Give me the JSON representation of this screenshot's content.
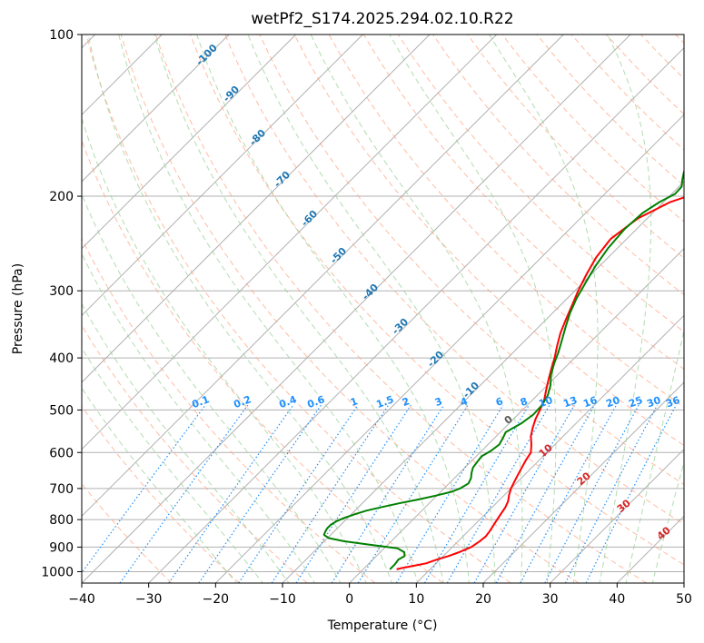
{
  "chart_data": {
    "type": "line",
    "title": "wetPf2_S174.2025.294.02.10.R22",
    "xlabel": "Temperature (°C)",
    "ylabel": "Pressure (hPa)",
    "xlim": [
      -40,
      50
    ],
    "ylim": [
      1050,
      100
    ],
    "x_ticks": [
      -40,
      -30,
      -20,
      -10,
      0,
      10,
      20,
      30,
      40,
      50
    ],
    "x_tick_labels": [
      "−40",
      "−30",
      "−20",
      "−10",
      "0",
      "10",
      "20",
      "30",
      "40",
      "50"
    ],
    "y_ticks": [
      1000,
      900,
      800,
      700,
      600,
      500,
      400,
      300,
      200,
      100
    ],
    "y_tick_labels": [
      "1000",
      "900",
      "800",
      "700",
      "600",
      "500",
      "400",
      "300",
      "200",
      "100"
    ],
    "grid": true,
    "dry_adiabat_labels": [
      "-100",
      "-90",
      "-80",
      "-70",
      "-60",
      "-50",
      "-40",
      "-30",
      "-20",
      "-10"
    ],
    "mixing_ratio_labels": [
      "0.1",
      "0.2",
      "0.4",
      "0.6",
      "1",
      "1.5",
      "2",
      "3",
      "4",
      "6",
      "8",
      "10",
      "13",
      "16",
      "20",
      "25",
      "30",
      "36"
    ],
    "moist_adiabat_labels": [
      "0",
      "10",
      "20",
      "30",
      "40"
    ],
    "colors": {
      "temperature": "#ff0000",
      "dewpoint": "#008000",
      "isotherm": "#b0b0b0",
      "dry_adiabat": "#ffa07a",
      "moist_adiabat": "#98d098",
      "mixing_ratio": "#1e90ff"
    },
    "series": [
      {
        "name": "Temperature",
        "pressure": [
          990,
          985,
          975,
          965,
          950,
          935,
          920,
          900,
          880,
          860,
          840,
          820,
          800,
          780,
          760,
          740,
          720,
          700,
          680,
          660,
          640,
          620,
          600,
          580,
          560,
          540,
          520,
          500,
          480,
          460,
          440,
          420,
          400,
          380,
          360,
          340,
          320,
          300,
          280,
          260,
          240,
          220,
          205,
          198,
          190,
          182,
          175,
          168,
          160,
          152,
          145,
          138,
          132,
          126,
          120,
          115,
          110,
          105,
          100
        ],
        "values": [
          5.0,
          5.5,
          7.0,
          8.5,
          9.5,
          10.8,
          11.8,
          12.8,
          13.2,
          13.4,
          13.2,
          12.9,
          12.6,
          12.3,
          12.0,
          11.5,
          10.7,
          10.0,
          9.5,
          9.0,
          8.5,
          8.0,
          7.6,
          6.5,
          5.2,
          4.2,
          3.3,
          2.6,
          1.8,
          0.6,
          -0.6,
          -1.8,
          -3.0,
          -4.4,
          -5.8,
          -7.0,
          -8.2,
          -9.5,
          -10.7,
          -11.8,
          -12.4,
          -11.4,
          -9.0,
          -6.6,
          -3.8,
          -1.0,
          0.8,
          1.8,
          3.0,
          4.0,
          5.0,
          6.0,
          7.5,
          9.2,
          10.6,
          11.5,
          12.5,
          13.5,
          14.6
        ]
      },
      {
        "name": "Dewpoint",
        "pressure": [
          990,
          970,
          950,
          935,
          920,
          905,
          890,
          878,
          866,
          854,
          842,
          830,
          818,
          806,
          794,
          782,
          770,
          758,
          746,
          734,
          722,
          710,
          700,
          685,
          670,
          655,
          640,
          625,
          610,
          595,
          580,
          565,
          550,
          530,
          510,
          490,
          470,
          450,
          430,
          410,
          390,
          370,
          350,
          330,
          310,
          290,
          270,
          250,
          230,
          215,
          205,
          198,
          192,
          186,
          180,
          172,
          164,
          156,
          148,
          140,
          132,
          124,
          118,
          112,
          106,
          100
        ],
        "values": [
          4.0,
          4.0,
          3.8,
          4.2,
          3.6,
          2.0,
          -3.0,
          -7.0,
          -9.8,
          -11.0,
          -11.3,
          -11.5,
          -11.5,
          -11.2,
          -10.5,
          -9.5,
          -8.3,
          -6.5,
          -4.5,
          -2.2,
          -0.2,
          1.6,
          2.4,
          2.9,
          2.5,
          1.8,
          1.2,
          1.0,
          0.8,
          1.4,
          1.7,
          1.3,
          0.8,
          1.8,
          2.3,
          2.2,
          1.6,
          0.5,
          -1.0,
          -2.2,
          -3.3,
          -4.6,
          -6.0,
          -7.4,
          -8.6,
          -9.6,
          -10.6,
          -11.4,
          -11.8,
          -11.5,
          -10.6,
          -9.5,
          -9.6,
          -10.6,
          -11.5,
          -12.2,
          -12.1,
          -11.5,
          -10.6,
          -10.0,
          -9.2,
          -8.0,
          -6.5,
          -5.0,
          -3.6,
          -2.4
        ]
      }
    ]
  }
}
